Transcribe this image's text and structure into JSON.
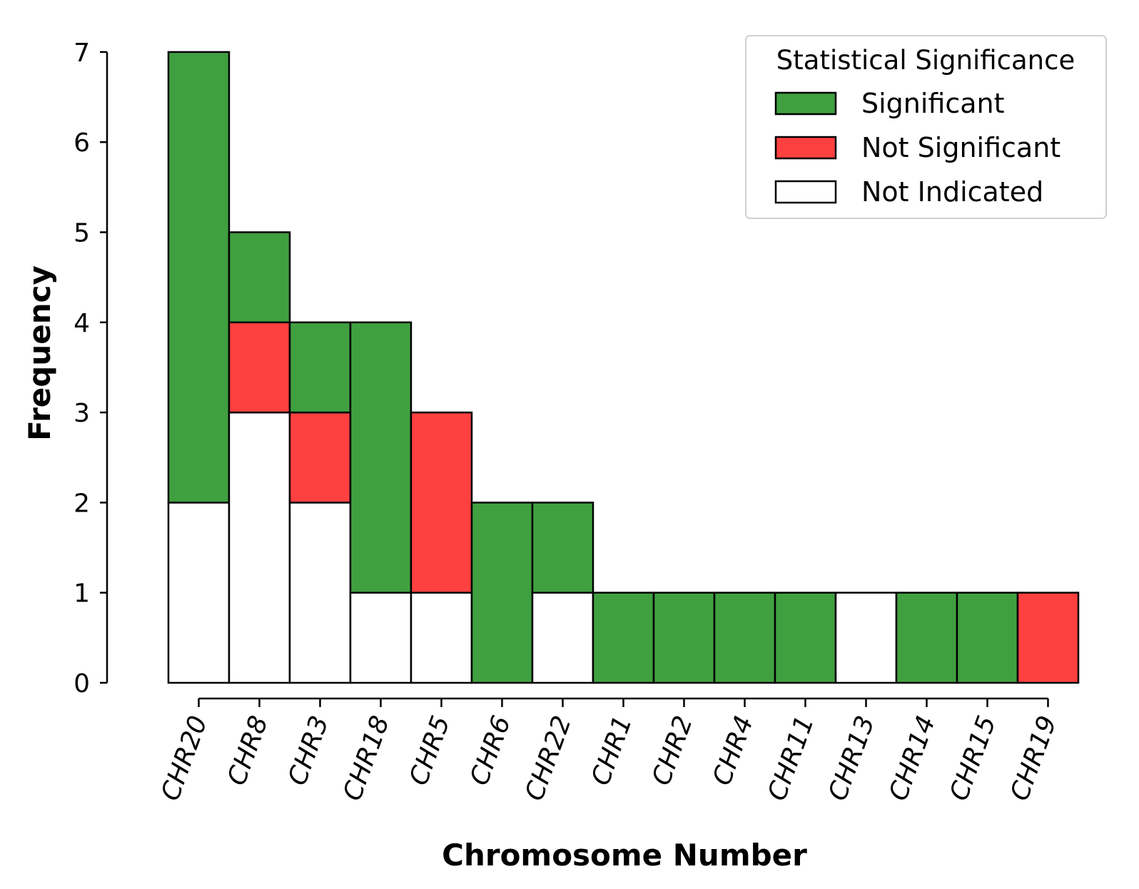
{
  "chart_data": {
    "type": "bar",
    "stacked": true,
    "categories": [
      "CHR20",
      "CHR8",
      "CHR3",
      "CHR18",
      "CHR5",
      "CHR6",
      "CHR22",
      "CHR1",
      "CHR2",
      "CHR4",
      "CHR11",
      "CHR13",
      "CHR14",
      "CHR15",
      "CHR19"
    ],
    "series": [
      {
        "name": "Not Indicated",
        "color": "#ffffff",
        "values": [
          2,
          3,
          2,
          1,
          1,
          0,
          1,
          0,
          0,
          0,
          0,
          1,
          0,
          0,
          0
        ]
      },
      {
        "name": "Not Significant",
        "color": "#ff4040",
        "values": [
          0,
          1,
          1,
          0,
          2,
          0,
          0,
          0,
          0,
          0,
          0,
          0,
          0,
          0,
          1
        ]
      },
      {
        "name": "Significant",
        "color": "#40a040",
        "values": [
          5,
          1,
          1,
          3,
          0,
          2,
          1,
          1,
          1,
          1,
          1,
          0,
          1,
          1,
          0
        ]
      }
    ],
    "stack_order": [
      "Not Indicated",
      "Not Significant",
      "Significant"
    ],
    "title": "",
    "xlabel": "Chromosome Number",
    "ylabel": "Frequency",
    "ylim": [
      0,
      7
    ],
    "yticks": [
      0,
      1,
      2,
      3,
      4,
      5,
      6,
      7
    ],
    "grid": false,
    "legend": {
      "title": "Statistical Significance",
      "placement": "top-right",
      "entries": [
        "Significant",
        "Not Significant",
        "Not Indicated"
      ]
    },
    "colors": {
      "edge": "#000000"
    }
  }
}
